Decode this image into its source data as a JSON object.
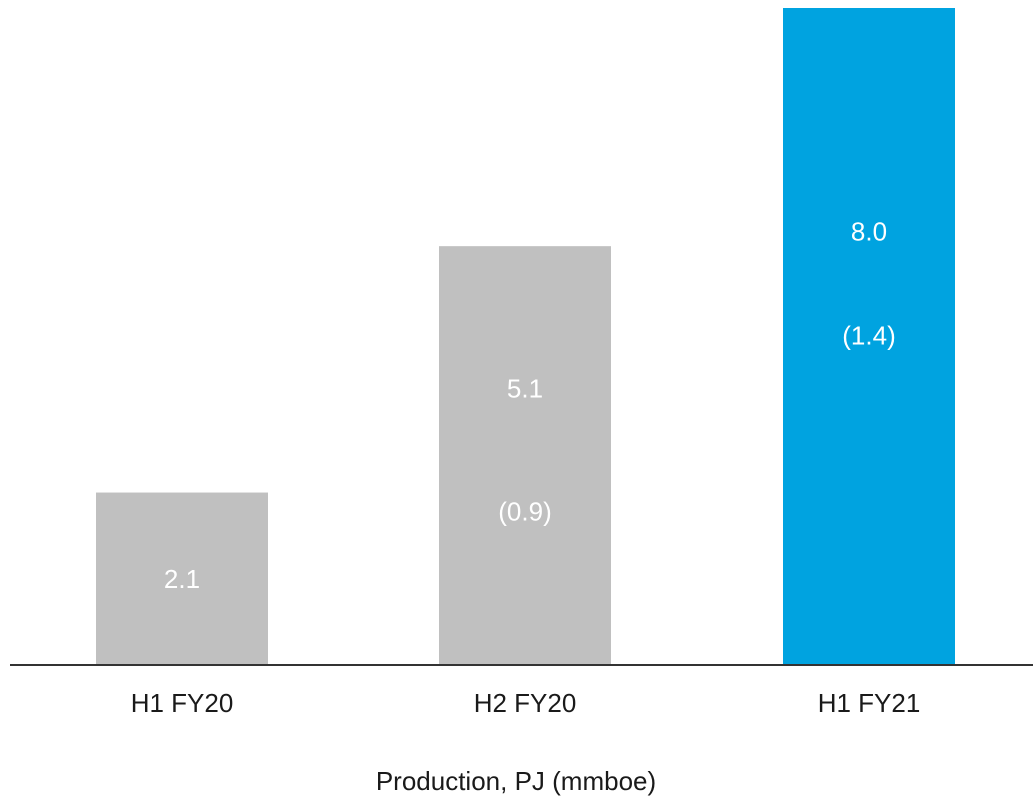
{
  "chart_data": {
    "type": "bar",
    "categories": [
      "H1 FY20",
      "H2 FY20",
      "H1 FY21"
    ],
    "values": [
      2.1,
      5.1,
      8.0
    ],
    "value_labels": [
      "2.1",
      "5.1",
      "8.0"
    ],
    "secondary_labels": [
      "",
      "(0.9)",
      "(1.4)"
    ],
    "colors": [
      "#c0c0c0",
      "#c0c0c0",
      "#00a3e0"
    ],
    "xlabel": "Production, PJ (mmboe)",
    "ylabel": "",
    "ylim": [
      0,
      8.0
    ],
    "grid": false,
    "legend": "none"
  }
}
